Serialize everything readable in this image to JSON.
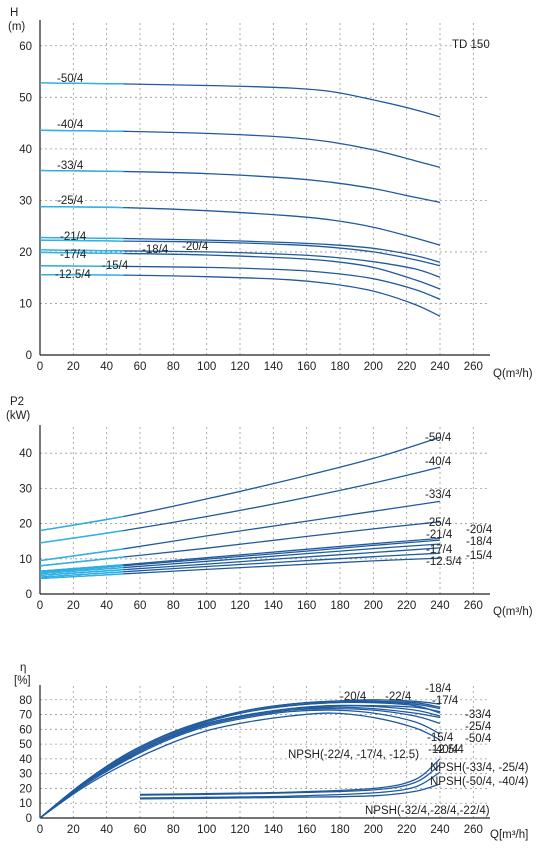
{
  "chart_data": [
    {
      "type": "line",
      "title": "TD 150",
      "ylabel": "H",
      "yunit": "(m)",
      "xlabel": "Q(m³/h)",
      "xlim": [
        0,
        270
      ],
      "ylim": [
        0,
        65
      ],
      "xticks": [
        "0",
        "20",
        "40",
        "60",
        "80",
        "100",
        "120",
        "140",
        "160",
        "180",
        "200",
        "220",
        "240",
        "260"
      ],
      "yticks": [
        "0",
        "10",
        "20",
        "30",
        "40",
        "50",
        "60"
      ],
      "x": [
        0,
        50,
        100,
        150,
        175,
        200,
        225,
        240
      ],
      "series": [
        {
          "name": "-50/4",
          "values": [
            52.8,
            52.6,
            52.3,
            51.8,
            51.1,
            49.5,
            47.6,
            46.2
          ]
        },
        {
          "name": "-40/4",
          "values": [
            43.6,
            43.4,
            43.0,
            42.2,
            41.3,
            39.8,
            37.7,
            36.4
          ]
        },
        {
          "name": "-33/4",
          "values": [
            35.8,
            35.6,
            35.2,
            34.3,
            33.5,
            32.3,
            30.6,
            29.6
          ]
        },
        {
          "name": "-25/4",
          "values": [
            28.8,
            28.6,
            28.0,
            27.0,
            26.2,
            24.8,
            22.7,
            21.3
          ]
        },
        {
          "name": "-21/4",
          "values": [
            22.8,
            22.6,
            22.3,
            21.8,
            21.4,
            20.7,
            19.3,
            18.0
          ]
        },
        {
          "name": "-20/4",
          "values": [
            22.3,
            22.1,
            21.9,
            21.4,
            20.9,
            20.0,
            18.5,
            17.3
          ]
        },
        {
          "name": "-18/4",
          "values": [
            20.4,
            20.2,
            20.0,
            19.5,
            19.0,
            18.1,
            16.7,
            15.1
          ]
        },
        {
          "name": "-17/4",
          "values": [
            19.9,
            19.7,
            19.4,
            18.8,
            18.2,
            17.0,
            14.6,
            12.8
          ]
        },
        {
          "name": "-15/4",
          "values": [
            17.3,
            17.2,
            17.0,
            16.5,
            15.9,
            14.8,
            12.7,
            10.8
          ]
        },
        {
          "name": "-12.5/4",
          "values": [
            15.6,
            15.5,
            15.2,
            14.6,
            13.8,
            12.4,
            9.8,
            7.5
          ]
        }
      ]
    },
    {
      "type": "line",
      "ylabel": "P2",
      "yunit": "(kW)",
      "xlabel": "Q(m³/h)",
      "xlim": [
        0,
        270
      ],
      "ylim": [
        0,
        48
      ],
      "xticks": [
        "0",
        "20",
        "40",
        "60",
        "80",
        "100",
        "120",
        "140",
        "160",
        "180",
        "200",
        "220",
        "240",
        "260"
      ],
      "yticks": [
        "0",
        "10",
        "20",
        "30",
        "40"
      ],
      "x": [
        0,
        50,
        100,
        150,
        200,
        240
      ],
      "series": [
        {
          "name": "-50/4",
          "values": [
            18.0,
            22.0,
            27.0,
            32.5,
            38.5,
            44.5
          ]
        },
        {
          "name": "-40/4",
          "values": [
            14.5,
            18.0,
            22.0,
            26.5,
            31.5,
            36.0
          ]
        },
        {
          "name": "-33/4",
          "values": [
            9.5,
            12.8,
            16.5,
            20.0,
            23.5,
            26.3
          ]
        },
        {
          "name": "-25/4",
          "values": [
            8.0,
            10.5,
            13.0,
            15.8,
            18.5,
            20.5
          ]
        },
        {
          "name": "-21/4",
          "values": [
            6.5,
            8.3,
            10.3,
            12.3,
            14.3,
            15.8
          ]
        },
        {
          "name": "-20/4",
          "values": [
            6.2,
            8.0,
            9.9,
            11.8,
            13.8,
            15.3
          ]
        },
        {
          "name": "-18/4",
          "values": [
            5.8,
            7.5,
            9.3,
            11.1,
            12.9,
            14.2
          ]
        },
        {
          "name": "-17/4",
          "values": [
            5.3,
            6.9,
            8.5,
            10.2,
            11.8,
            13.1
          ]
        },
        {
          "name": "-15/4",
          "values": [
            4.8,
            6.3,
            7.8,
            9.2,
            10.6,
            11.6
          ]
        },
        {
          "name": "-12.5/4",
          "values": [
            4.4,
            5.7,
            7.0,
            8.2,
            9.4,
            10.2
          ]
        }
      ]
    },
    {
      "type": "line",
      "ylabel": "η",
      "yunit": "[%]",
      "xlabel": "Q[m³/h]",
      "xlim": [
        0,
        270
      ],
      "ylim": [
        0,
        90
      ],
      "xticks": [
        "0",
        "20",
        "40",
        "60",
        "80",
        "100",
        "120",
        "140",
        "160",
        "180",
        "200",
        "220",
        "240",
        "260"
      ],
      "yticks": [
        "0",
        "10",
        "20",
        "30",
        "40",
        "50",
        "60",
        "70",
        "80"
      ],
      "x": [
        0,
        25,
        50,
        75,
        100,
        125,
        150,
        175,
        200,
        225,
        240
      ],
      "series": [
        {
          "name": "-20/4",
          "values": [
            0,
            23,
            42,
            56,
            66,
            73,
            77,
            79,
            80,
            79,
            77
          ]
        },
        {
          "name": "-22/4",
          "values": [
            0,
            23,
            42,
            56,
            66,
            73,
            77,
            79,
            79,
            78,
            75
          ]
        },
        {
          "name": "-18/4",
          "values": [
            0,
            23,
            42,
            56,
            66,
            72,
            76,
            78,
            78.5,
            77,
            74
          ]
        },
        {
          "name": "-17/4",
          "values": [
            0,
            23,
            41,
            55,
            65,
            72,
            76,
            78,
            78,
            76,
            71
          ]
        },
        {
          "name": "-33/4",
          "values": [
            0,
            22,
            40,
            54,
            64,
            70,
            74,
            76,
            76,
            75,
            72
          ]
        },
        {
          "name": "-25/4",
          "values": [
            0,
            22,
            40,
            54,
            64,
            70,
            74,
            76,
            75.5,
            73,
            69
          ]
        },
        {
          "name": "-50/4",
          "values": [
            0,
            22,
            39,
            53,
            63,
            69,
            73,
            75,
            74,
            71,
            68
          ]
        },
        {
          "name": "-40/4",
          "values": [
            0,
            22,
            39,
            53,
            63,
            69,
            73,
            74,
            73,
            69,
            64
          ]
        },
        {
          "name": "-15/4",
          "values": [
            0,
            21,
            38,
            52,
            62,
            68,
            72,
            73,
            71,
            65,
            57
          ]
        },
        {
          "name": "-12.5/4",
          "values": [
            0,
            20,
            36,
            49,
            59,
            65,
            69,
            71,
            68,
            61,
            53
          ]
        }
      ],
      "npsh": {
        "x": [
          60,
          100,
          150,
          200,
          225,
          240
        ],
        "series": [
          {
            "name": "NPSH(-22/4, -17/4, -12.5)",
            "values": [
              16,
              16.5,
              17.5,
              20,
              26,
              40
            ]
          },
          {
            "name": "NPSH(-33/4, -25/4)",
            "values": [
              15.5,
              16,
              17,
              19,
              24,
              36
            ]
          },
          {
            "name": "NPSH(-50/4, -40/4)",
            "values": [
              13.5,
              14,
              14.8,
              17,
              21,
              31
            ]
          },
          {
            "name": "NPSH(-32/4,-28/4,-22/4)",
            "values": [
              13,
              13.3,
              14,
              15,
              18,
              23
            ]
          }
        ]
      }
    }
  ]
}
